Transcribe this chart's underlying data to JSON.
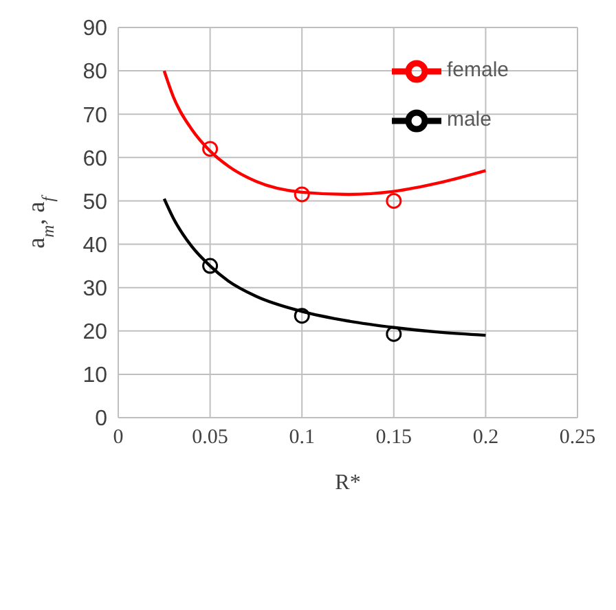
{
  "chart_data": {
    "type": "scatter",
    "xlabel": "R*",
    "ylabel": "a$_{m}$,  a$_{f}$",
    "xlim": [
      0,
      0.25
    ],
    "xticks": [
      0,
      0.05,
      0.1,
      0.15,
      0.2,
      0.25
    ],
    "ylim": [
      0,
      90
    ],
    "yticks": [
      0,
      10,
      20,
      30,
      40,
      50,
      60,
      70,
      80,
      90
    ],
    "grid": true,
    "legend": "top right",
    "series": [
      {
        "name": "male",
        "marker": "circle",
        "color": "#000000",
        "x": [
          0.05,
          0.1,
          0.15
        ],
        "values": [
          35,
          23.5,
          19.3
        ]
      },
      {
        "name": "female",
        "marker": "circle",
        "color": "#ff0000",
        "x": [
          0.05,
          0.1,
          0.15
        ],
        "values": [
          62,
          51.5,
          50
        ]
      },
      {
        "type": "line",
        "color": "#000000",
        "x": [
          0.025,
          0.03,
          0.04,
          0.05,
          0.06,
          0.075,
          0.1,
          0.125,
          0.15,
          0.175,
          0.2
        ],
        "values": [
          50.5,
          46,
          39.5,
          35,
          31.5,
          28,
          24.5,
          22.3,
          20.8,
          19.7,
          19
        ]
      },
      {
        "type": "line",
        "color": "#ff0000",
        "x": [
          0.025,
          0.03,
          0.04,
          0.05,
          0.06,
          0.075,
          0.1,
          0.125,
          0.15,
          0.175,
          0.2
        ],
        "values": [
          80,
          74,
          66.5,
          61.5,
          58,
          54.5,
          52,
          51.5,
          52.2,
          54.2,
          57
        ]
      }
    ]
  }
}
